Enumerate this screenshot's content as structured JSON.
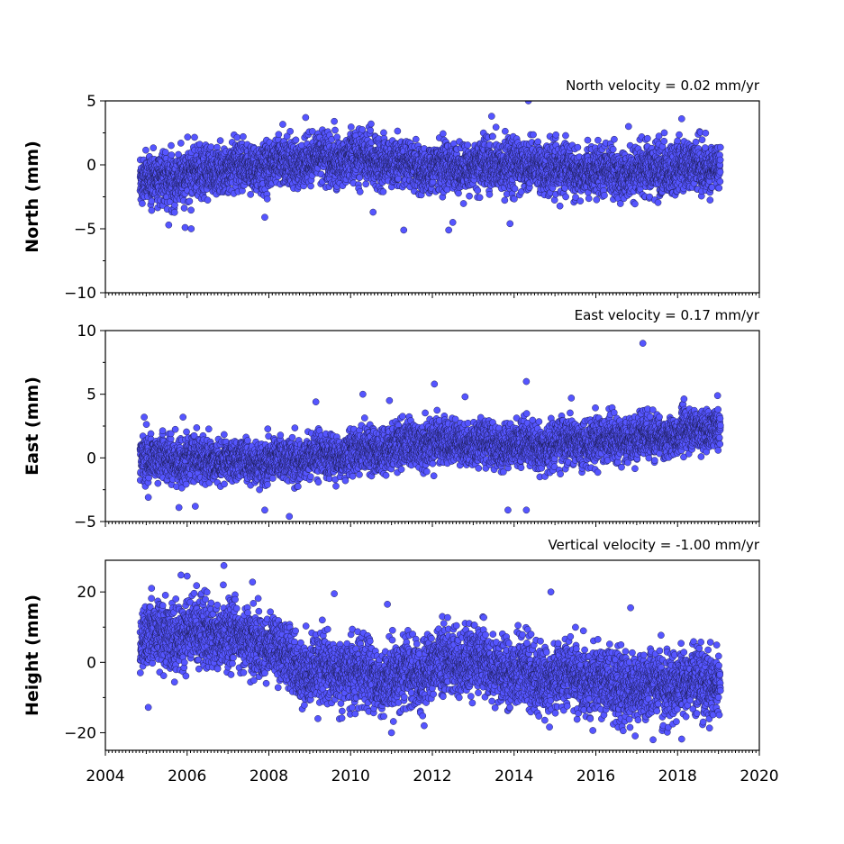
{
  "chart_data": [
    {
      "type": "scatter",
      "title": "North velocity = 0.02 mm/yr",
      "ylabel": "North (mm)",
      "xlim": [
        2004,
        2020
      ],
      "ylim": [
        -10,
        5
      ],
      "yticks": [
        -10,
        -5,
        0,
        5
      ],
      "xticks": [
        2004,
        2006,
        2008,
        2010,
        2012,
        2014,
        2016,
        2018,
        2020
      ],
      "color": "#5555ff",
      "x_range": [
        2004.85,
        2019.05
      ],
      "trend": [
        [
          2004.9,
          -1.2
        ],
        [
          2006.0,
          -0.8
        ],
        [
          2008.0,
          0.1
        ],
        [
          2010.0,
          0.6
        ],
        [
          2012.0,
          -0.2
        ],
        [
          2014.0,
          0.0
        ],
        [
          2016.0,
          -0.6
        ],
        [
          2018.0,
          -0.3
        ],
        [
          2019.0,
          0.0
        ]
      ],
      "scatter_sd": 0.95,
      "outliers": [
        [
          2014.35,
          5.0
        ],
        [
          2013.45,
          3.8
        ],
        [
          2008.9,
          3.7
        ],
        [
          2018.1,
          3.6
        ],
        [
          2009.6,
          3.4
        ],
        [
          2010.5,
          3.2
        ],
        [
          2011.3,
          -5.1
        ],
        [
          2012.4,
          -5.1
        ],
        [
          2013.9,
          -4.6
        ],
        [
          2005.95,
          -4.9
        ],
        [
          2006.1,
          -5.0
        ],
        [
          2005.55,
          -4.7
        ],
        [
          2012.5,
          -4.5
        ],
        [
          2007.9,
          -4.1
        ],
        [
          2010.55,
          -3.7
        ],
        [
          2016.8,
          3.0
        ]
      ]
    },
    {
      "type": "scatter",
      "title": "East velocity = 0.17 mm/yr",
      "ylabel": "East (mm)",
      "xlim": [
        2004,
        2020
      ],
      "ylim": [
        -5,
        10
      ],
      "yticks": [
        -5,
        0,
        5,
        10
      ],
      "xticks": [
        2004,
        2006,
        2008,
        2010,
        2012,
        2014,
        2016,
        2018,
        2020
      ],
      "color": "#5555ff",
      "x_range": [
        2004.85,
        2019.05
      ],
      "trend": [
        [
          2004.9,
          0.0
        ],
        [
          2006.0,
          -0.2
        ],
        [
          2008.0,
          -0.3
        ],
        [
          2010.0,
          0.3
        ],
        [
          2012.0,
          1.3
        ],
        [
          2013.0,
          0.9
        ],
        [
          2014.0,
          1.0
        ],
        [
          2016.0,
          1.3
        ],
        [
          2018.0,
          1.8
        ],
        [
          2019.0,
          2.5
        ]
      ],
      "scatter_sd": 0.85,
      "outliers": [
        [
          2017.15,
          9.0
        ],
        [
          2014.3,
          6.0
        ],
        [
          2012.05,
          5.8
        ],
        [
          2010.3,
          5.0
        ],
        [
          2012.8,
          4.8
        ],
        [
          2015.4,
          4.7
        ],
        [
          2009.15,
          4.4
        ],
        [
          2010.95,
          4.5
        ],
        [
          2004.95,
          3.2
        ],
        [
          2005.9,
          3.2
        ],
        [
          2008.5,
          -4.6
        ],
        [
          2007.9,
          -4.1
        ],
        [
          2014.3,
          -4.1
        ],
        [
          2013.85,
          -4.1
        ],
        [
          2006.2,
          -3.8
        ],
        [
          2005.8,
          -3.9
        ],
        [
          2005.05,
          -3.1
        ]
      ]
    },
    {
      "type": "scatter",
      "title": "Vertical velocity = -1.00 mm/yr",
      "ylabel": "Height (mm)",
      "xlim": [
        2004,
        2020
      ],
      "ylim": [
        -25,
        29
      ],
      "yticks": [
        -20,
        0,
        20
      ],
      "xticks": [
        2004,
        2006,
        2008,
        2010,
        2012,
        2014,
        2016,
        2018,
        2020
      ],
      "color": "#5555ff",
      "x_range": [
        2004.85,
        2019.05
      ],
      "trend": [
        [
          2004.9,
          6.0
        ],
        [
          2006.0,
          9.0
        ],
        [
          2007.0,
          8.0
        ],
        [
          2008.0,
          4.0
        ],
        [
          2009.0,
          -3.0
        ],
        [
          2010.0,
          -2.0
        ],
        [
          2011.0,
          -5.0
        ],
        [
          2012.0,
          -1.0
        ],
        [
          2013.0,
          1.0
        ],
        [
          2014.0,
          -3.0
        ],
        [
          2015.0,
          -4.0
        ],
        [
          2016.0,
          -5.0
        ],
        [
          2017.0,
          -7.0
        ],
        [
          2018.0,
          -6.0
        ],
        [
          2019.0,
          -5.0
        ]
      ],
      "scatter_sd": 4.6,
      "outliers": [
        [
          2006.9,
          27.5
        ],
        [
          2005.85,
          24.8
        ],
        [
          2006.0,
          24.5
        ],
        [
          2007.6,
          22.8
        ],
        [
          2014.9,
          20.0
        ],
        [
          2009.6,
          19.5
        ],
        [
          2010.9,
          16.5
        ],
        [
          2016.85,
          15.5
        ],
        [
          2011.0,
          -20.0
        ],
        [
          2018.1,
          -21.8
        ],
        [
          2017.4,
          -22.0
        ],
        [
          2011.8,
          -18.0
        ],
        [
          2005.05,
          -12.8
        ],
        [
          2009.2,
          -16.0
        ]
      ]
    }
  ]
}
